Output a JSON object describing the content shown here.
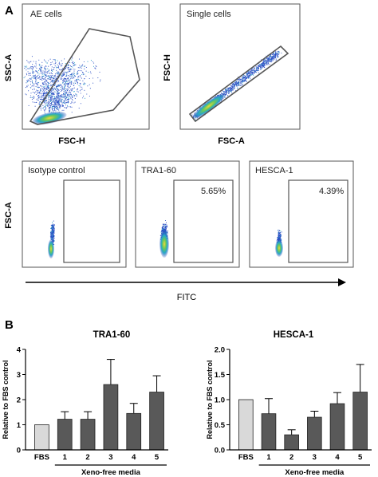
{
  "panel_a": {
    "letter": "A",
    "plots": [
      {
        "gate_label": "AE cells",
        "x_label": "FSC-H",
        "y_label": "SSC-A"
      },
      {
        "gate_label": "Single cells",
        "x_label": "FSC-A",
        "y_label": "FSC-H"
      },
      {
        "gate_label": "Isotype control",
        "percent": "",
        "y_label": "FSC-A"
      },
      {
        "gate_label": "TRA1-60",
        "percent": "5.65%"
      },
      {
        "gate_label": "HESCA-1",
        "percent": "4.39%"
      }
    ],
    "arrow_label": "FITC"
  },
  "panel_b": {
    "letter": "B"
  },
  "chart_data": [
    {
      "type": "bar",
      "title": "TRA1-60",
      "ylabel": "Relative to FBS control",
      "xlabel": "Xeno-free media",
      "categories": [
        "FBS",
        "1",
        "2",
        "3",
        "4",
        "5"
      ],
      "values": [
        1.0,
        1.22,
        1.22,
        2.6,
        1.45,
        2.3
      ],
      "errors": [
        0,
        0.3,
        0.3,
        1.0,
        0.4,
        0.65
      ],
      "ylim": [
        0,
        4
      ],
      "yticks": [
        "0",
        "1",
        "2",
        "3",
        "4"
      ],
      "colors": {
        "control": "#d9d9d9",
        "treated": "#595959"
      }
    },
    {
      "type": "bar",
      "title": "HESCA-1",
      "ylabel": "Relative to FBS control",
      "xlabel": "Xeno-free media",
      "categories": [
        "FBS",
        "1",
        "2",
        "3",
        "4",
        "5"
      ],
      "values": [
        1.0,
        0.72,
        0.3,
        0.65,
        0.92,
        1.15
      ],
      "errors": [
        0,
        0.3,
        0.1,
        0.12,
        0.22,
        0.55
      ],
      "ylim": [
        0,
        2.0
      ],
      "yticks": [
        "0.0",
        "0.5",
        "1.0",
        "1.5",
        "2.0"
      ],
      "colors": {
        "control": "#d9d9d9",
        "treated": "#595959"
      }
    }
  ]
}
